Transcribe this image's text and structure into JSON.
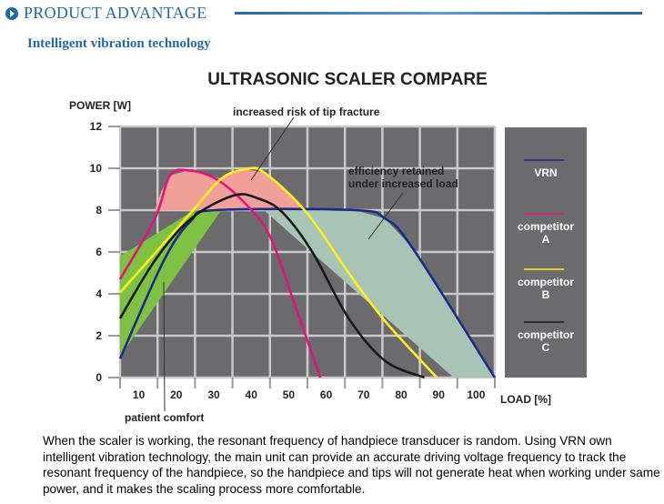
{
  "header": {
    "title": "PRODUCT ADVANTAGE",
    "subtitle": "Intelligent vibration technology",
    "accent": "#1f6aa5"
  },
  "chart_data": {
    "type": "line",
    "title": "ULTRASONIC SCALER COMPARE",
    "ylabel": "POWER [W]",
    "xlabel": "LOAD [%]",
    "ylim": [
      0,
      12
    ],
    "xlim": [
      5,
      105
    ],
    "yticks": [
      "0",
      "2",
      "4",
      "6",
      "8",
      "10",
      "12"
    ],
    "xticks": [
      "10",
      "20",
      "30",
      "40",
      "50",
      "60",
      "70",
      "80",
      "90",
      "100"
    ],
    "grid": true,
    "legend_placement": "right",
    "series": [
      {
        "name": "VRN",
        "color": "#1e2a8a",
        "points": [
          [
            5,
            0.9
          ],
          [
            16.7,
            5.6
          ],
          [
            24,
            7.5
          ],
          [
            30.5,
            8.0
          ],
          [
            67.6,
            8.0
          ],
          [
            75.7,
            7.6
          ],
          [
            83,
            6.2
          ],
          [
            105,
            0
          ]
        ]
      },
      {
        "name": "competitor A",
        "color": "#e0147a",
        "points": [
          [
            5,
            4.7
          ],
          [
            14.3,
            7.6
          ],
          [
            18.3,
            9.65
          ],
          [
            23.2,
            9.9
          ],
          [
            30.5,
            9.5
          ],
          [
            38.5,
            8.3
          ],
          [
            45,
            6.75
          ],
          [
            51.5,
            3.55
          ],
          [
            58.4,
            0
          ]
        ]
      },
      {
        "name": "competitor B",
        "color": "#ffef1a",
        "points": [
          [
            5,
            4.06
          ],
          [
            24,
            7.9
          ],
          [
            32,
            9.5
          ],
          [
            38.5,
            9.95
          ],
          [
            43.4,
            9.8
          ],
          [
            54.7,
            7.9
          ],
          [
            66,
            5.0
          ],
          [
            75.7,
            2.7
          ],
          [
            89.5,
            0
          ]
        ]
      },
      {
        "name": "competitor C",
        "color": "#1a1a1a",
        "points": [
          [
            5,
            2.83
          ],
          [
            14.3,
            5.6
          ],
          [
            24,
            7.6
          ],
          [
            35.3,
            8.7
          ],
          [
            41.8,
            8.56
          ],
          [
            48.3,
            7.9
          ],
          [
            56.3,
            6.0
          ],
          [
            66,
            2.83
          ],
          [
            75.7,
            0.8
          ],
          [
            86.2,
            0
          ]
        ]
      }
    ],
    "regions": [
      {
        "label": "patient comfort",
        "color": "#7dc242",
        "points": [
          [
            5,
            5.8
          ],
          [
            24.8,
            8
          ],
          [
            32,
            8
          ],
          [
            5,
            1.0
          ]
        ]
      },
      {
        "label": "increased risk of tip fracture",
        "color": "#f0a098",
        "points": [
          [
            14.3,
            8
          ],
          [
            16,
            8.9
          ],
          [
            18.3,
            9.65
          ],
          [
            23.2,
            9.9
          ],
          [
            28,
            9.7
          ],
          [
            32,
            9.5
          ],
          [
            35,
            9.85
          ],
          [
            38.5,
            9.95
          ],
          [
            43.4,
            9.8
          ],
          [
            49,
            8.9
          ],
          [
            53.9,
            8
          ]
        ]
      },
      {
        "label": "efficiency retained under increased load",
        "color": "#a8c4b4",
        "points": [
          [
            43.4,
            8
          ],
          [
            67.6,
            8
          ],
          [
            75.7,
            7.6
          ],
          [
            83,
            6.2
          ],
          [
            105,
            0
          ],
          [
            94,
            0
          ]
        ]
      }
    ],
    "annotations": {
      "tip_fracture": "increased risk of tip fracture",
      "efficiency_1": "efficiency retained",
      "efficiency_2": "under increased load",
      "comfort": "patient comfort"
    },
    "legend_lines": [
      [
        "VRN"
      ],
      [
        "competitor",
        "A"
      ],
      [
        "competitor",
        "B"
      ],
      [
        "competitor",
        "C"
      ]
    ]
  },
  "paragraph": "When the scaler is working, the resonant frequency of handpiece transducer is random. Using VRN own intelligent vibration technology, the main unit can provide an accurate driving voltage frequency to track the resonant frequency of the handpiece, so the handpiece and tips will not generate heat when working under same power, and it makes the scaling process more comfortable."
}
